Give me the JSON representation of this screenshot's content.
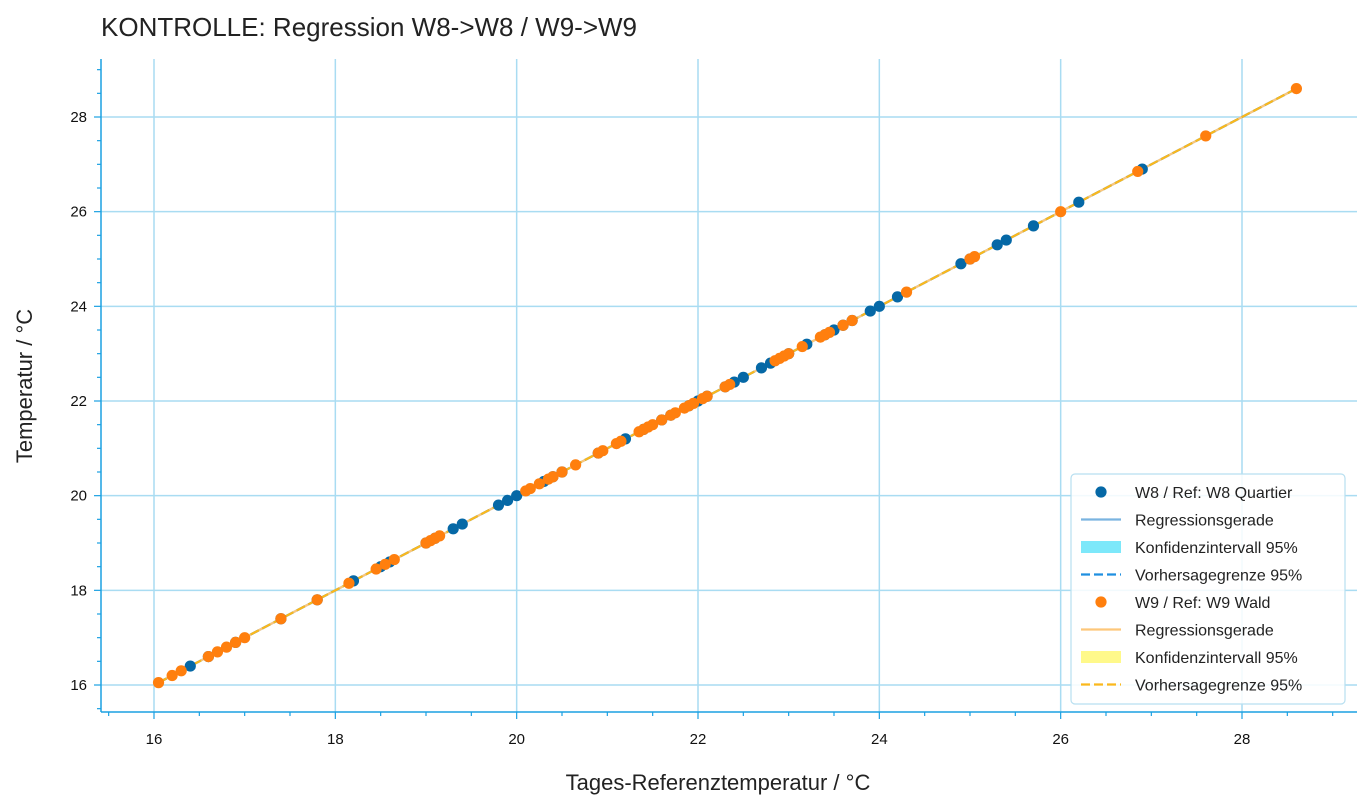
{
  "chart_data": {
    "type": "scatter",
    "title": "KONTROLLE: Regression W8->W8 / W9->W9",
    "xlabel": "Tages-Referenztemperatur / °C",
    "ylabel": "Temperatur / °C",
    "xlim": [
      15.4,
      29.3
    ],
    "ylim": [
      15.5,
      29.3
    ],
    "xticks": [
      16,
      18,
      20,
      22,
      24,
      26,
      28
    ],
    "yticks": [
      16,
      18,
      20,
      22,
      24,
      26,
      28
    ],
    "grid": true,
    "legend_position": "lower-right",
    "series": [
      {
        "name": "W8 / Ref: W8 Quartier",
        "color": "#0568a6",
        "points": [
          16.4,
          16.6,
          16.9,
          17.4,
          17.8,
          18.2,
          18.5,
          18.6,
          19.0,
          19.1,
          19.3,
          19.4,
          19.8,
          19.9,
          20.0,
          20.3,
          20.4,
          20.5,
          20.9,
          21.2,
          21.4,
          21.6,
          21.7,
          21.9,
          22.0,
          22.1,
          22.3,
          22.4,
          22.5,
          22.7,
          22.8,
          23.0,
          23.2,
          23.4,
          23.5,
          23.6,
          23.7,
          23.9,
          24.0,
          24.2,
          24.9,
          25.0,
          25.3,
          25.4,
          25.7,
          26.2,
          26.9
        ]
      },
      {
        "name": "W9 / Ref: W9 Wald",
        "color": "#ff7f0e",
        "points": [
          16.05,
          16.2,
          16.3,
          16.6,
          16.7,
          16.8,
          16.9,
          17.0,
          17.4,
          17.8,
          18.15,
          18.45,
          18.55,
          18.65,
          19.0,
          19.05,
          19.1,
          19.15,
          20.1,
          20.15,
          20.25,
          20.35,
          20.4,
          20.5,
          20.65,
          20.9,
          20.95,
          21.1,
          21.15,
          21.35,
          21.4,
          21.45,
          21.5,
          21.6,
          21.7,
          21.75,
          21.85,
          21.9,
          21.95,
          22.05,
          22.1,
          22.3,
          22.35,
          22.85,
          22.9,
          22.95,
          23.0,
          23.15,
          23.35,
          23.4,
          23.45,
          23.6,
          23.7,
          24.3,
          25.0,
          25.05,
          26.0,
          26.85,
          27.6,
          28.6
        ]
      }
    ],
    "regression_lines": [
      {
        "name": "Regressionsgerade",
        "color": "#7ab4e0",
        "x": [
          16.05,
          28.6
        ],
        "y": [
          16.05,
          28.6
        ]
      },
      {
        "name": "Regressionsgerade",
        "color": "#fdc77a",
        "x": [
          16.05,
          28.6
        ],
        "y": [
          16.05,
          28.6
        ]
      }
    ],
    "confidence_bands": [
      {
        "name": "Konfidenzintervall 95%",
        "color": "#7de8fa"
      },
      {
        "name": "Konfidenzintervall 95%",
        "color": "#fff98a"
      }
    ],
    "prediction_limits": [
      {
        "name": "Vorhersagegrenze 95%",
        "color": "#1f8fe0",
        "x": [
          16.05,
          28.6
        ],
        "y": [
          16.05,
          28.6
        ]
      },
      {
        "name": "Vorhersagegrenze 95%",
        "color": "#fbb81c",
        "x": [
          16.05,
          28.6
        ],
        "y": [
          16.05,
          28.6
        ]
      }
    ],
    "legend": [
      {
        "kind": "marker",
        "label": "W8 / Ref: W8 Quartier",
        "color": "#0568a6"
      },
      {
        "kind": "line",
        "label": "Regressionsgerade",
        "color": "#7ab4e0"
      },
      {
        "kind": "patch",
        "label": "Konfidenzintervall 95%",
        "color": "#7de8fa"
      },
      {
        "kind": "dash",
        "label": "Vorhersagegrenze 95%",
        "color": "#1f8fe0"
      },
      {
        "kind": "marker",
        "label": "W9 / Ref: W9 Wald",
        "color": "#ff7f0e"
      },
      {
        "kind": "line",
        "label": "Regressionsgerade",
        "color": "#fdc77a"
      },
      {
        "kind": "patch",
        "label": "Konfidenzintervall 95%",
        "color": "#fff98a"
      },
      {
        "kind": "dash",
        "label": "Vorhersagegrenze 95%",
        "color": "#fbb81c"
      }
    ],
    "colors": {
      "axis": "#1ba1e2",
      "grid": "#a9dcf2"
    }
  }
}
